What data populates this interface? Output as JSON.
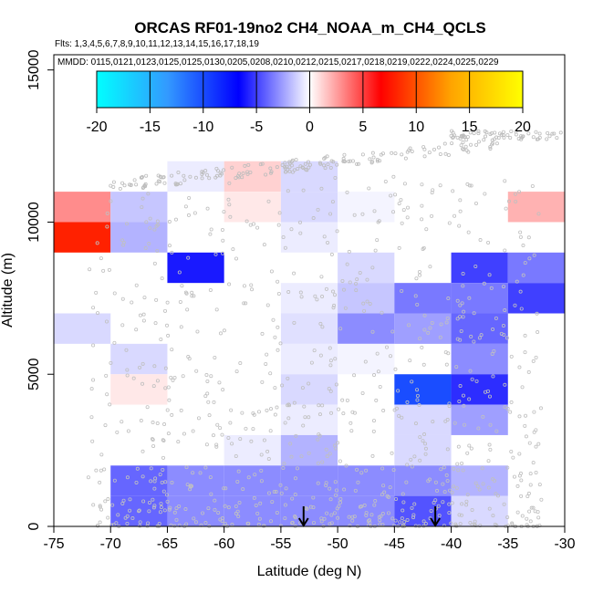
{
  "chart_data": {
    "type": "heatmap",
    "title": "ORCAS RF01-19no2 CH4_NOAA_m_CH4_QCLS",
    "flights_label": "Flts: 1,3,4,5,6,7,8,9,10,11,12,13,14,15,16,17,18,19",
    "dates_label": "MMDD: 0115,0121,0123,0125,0125,0130,0205,0208,0210,0212,0215,0217,0218,0219,0222,0224,0225,0229",
    "xlabel": "Latitude (deg N)",
    "ylabel": "Altitude (m)",
    "xlim": [
      -75,
      -30
    ],
    "ylim": [
      0,
      15000
    ],
    "x_ticks": [
      -75,
      -70,
      -65,
      -60,
      -55,
      -50,
      -45,
      -40,
      -35,
      -30
    ],
    "y_ticks": [
      0,
      5000,
      10000,
      15000
    ],
    "colorbar": {
      "range": [
        -20,
        20
      ],
      "ticks": [
        -20,
        -15,
        -10,
        -5,
        0,
        5,
        10,
        15,
        20
      ],
      "stops": [
        "#00ffff",
        "#3399ff",
        "#0000ff",
        "#ffffff",
        "#ff0000",
        "#ffa500",
        "#ffff00"
      ]
    },
    "lat_bin_width": 5,
    "alt_bin_height": 1000,
    "cells": [
      {
        "lat": -75,
        "alt": 10000,
        "v": 3
      },
      {
        "lat": -75,
        "alt": 9000,
        "v": 8
      },
      {
        "lat": -75,
        "alt": 6000,
        "v": -1
      },
      {
        "lat": -70,
        "alt": 10000,
        "v": -1.5
      },
      {
        "lat": -70,
        "alt": 9000,
        "v": -2
      },
      {
        "lat": -70,
        "alt": 5000,
        "v": -1
      },
      {
        "lat": -70,
        "alt": 4000,
        "v": 0.6
      },
      {
        "lat": -70,
        "alt": 1000,
        "v": -4
      },
      {
        "lat": -70,
        "alt": 0,
        "v": -4
      },
      {
        "lat": -65,
        "alt": 11000,
        "v": -0.5
      },
      {
        "lat": -65,
        "alt": 8000,
        "v": -6
      },
      {
        "lat": -65,
        "alt": 1000,
        "v": -3
      },
      {
        "lat": -65,
        "alt": 0,
        "v": -3
      },
      {
        "lat": -60,
        "alt": 11000,
        "v": 1.2
      },
      {
        "lat": -60,
        "alt": 10000,
        "v": 0.6
      },
      {
        "lat": -60,
        "alt": 2000,
        "v": -0.5
      },
      {
        "lat": -60,
        "alt": 1000,
        "v": -3
      },
      {
        "lat": -60,
        "alt": 0,
        "v": -3
      },
      {
        "lat": -55,
        "alt": 11000,
        "v": -1
      },
      {
        "lat": -55,
        "alt": 10000,
        "v": -1
      },
      {
        "lat": -55,
        "alt": 9000,
        "v": -0.5
      },
      {
        "lat": -55,
        "alt": 7000,
        "v": -0.5
      },
      {
        "lat": -55,
        "alt": 6000,
        "v": -0.8
      },
      {
        "lat": -55,
        "alt": 5000,
        "v": -0.5
      },
      {
        "lat": -55,
        "alt": 4000,
        "v": -1
      },
      {
        "lat": -55,
        "alt": 3000,
        "v": -0.5
      },
      {
        "lat": -55,
        "alt": 2000,
        "v": -2
      },
      {
        "lat": -55,
        "alt": 1000,
        "v": -3
      },
      {
        "lat": -55,
        "alt": 0,
        "v": -3
      },
      {
        "lat": -50,
        "alt": 10000,
        "v": -0.3
      },
      {
        "lat": -50,
        "alt": 8000,
        "v": -1
      },
      {
        "lat": -50,
        "alt": 7000,
        "v": -1.5
      },
      {
        "lat": -50,
        "alt": 6000,
        "v": -3
      },
      {
        "lat": -50,
        "alt": 5000,
        "v": -0.3
      },
      {
        "lat": -50,
        "alt": 1000,
        "v": -3
      },
      {
        "lat": -50,
        "alt": 0,
        "v": -3
      },
      {
        "lat": -45,
        "alt": 7000,
        "v": -3.5
      },
      {
        "lat": -45,
        "alt": 6000,
        "v": -2.5
      },
      {
        "lat": -45,
        "alt": 4000,
        "v": -10
      },
      {
        "lat": -45,
        "alt": 3000,
        "v": -1
      },
      {
        "lat": -45,
        "alt": 2000,
        "v": -1
      },
      {
        "lat": -45,
        "alt": 1000,
        "v": -3
      },
      {
        "lat": -45,
        "alt": 0,
        "v": -4.5
      },
      {
        "lat": -40,
        "alt": 8000,
        "v": -5
      },
      {
        "lat": -40,
        "alt": 7000,
        "v": -3.5
      },
      {
        "lat": -40,
        "alt": 6000,
        "v": -4
      },
      {
        "lat": -40,
        "alt": 5000,
        "v": -3
      },
      {
        "lat": -40,
        "alt": 4000,
        "v": -5.5
      },
      {
        "lat": -40,
        "alt": 3000,
        "v": -2.5
      },
      {
        "lat": -40,
        "alt": 1000,
        "v": -2
      },
      {
        "lat": -40,
        "alt": 0,
        "v": -1
      },
      {
        "lat": -35,
        "alt": 10000,
        "v": 2
      },
      {
        "lat": -35,
        "alt": 8000,
        "v": -3.5
      },
      {
        "lat": -35,
        "alt": 7000,
        "v": -5
      }
    ],
    "arrows": [
      {
        "lat": -53,
        "alt": 0
      },
      {
        "lat": -41.4,
        "alt": 0
      }
    ]
  }
}
